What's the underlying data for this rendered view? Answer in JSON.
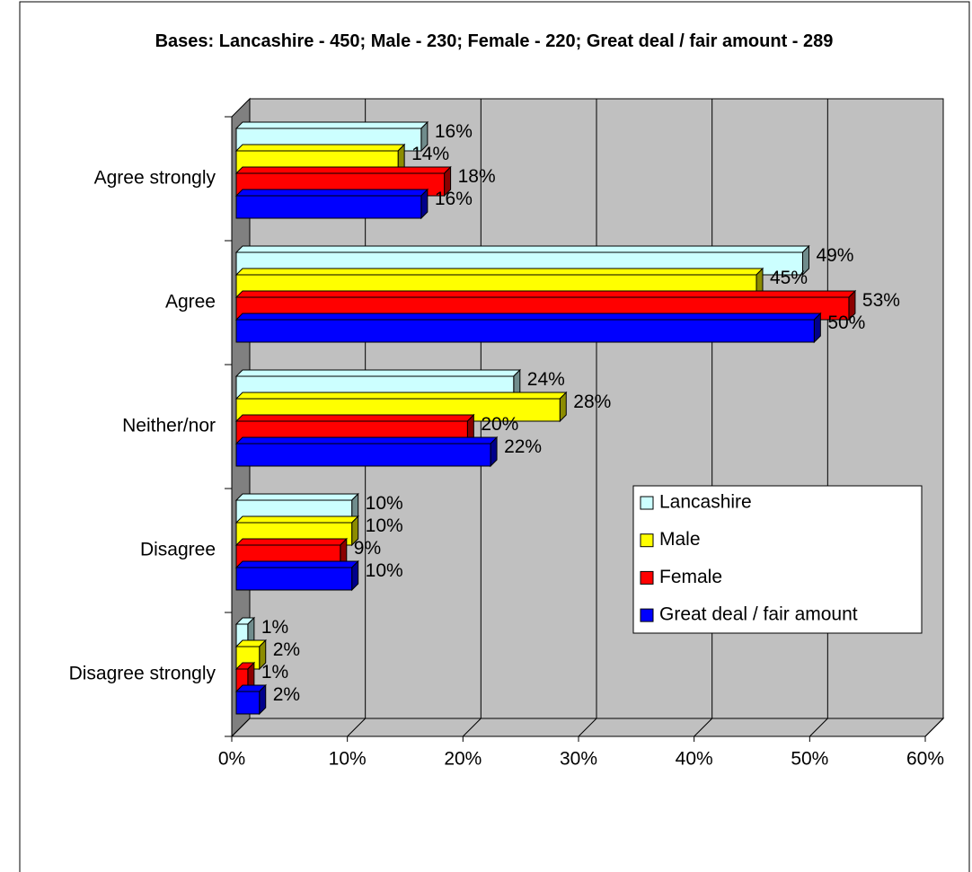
{
  "chart_data": {
    "type": "bar",
    "orientation": "horizontal",
    "title": "Bases: Lancashire - 450; Male - 230; Female - 220; Great deal / fair amount - 289",
    "categories": [
      "Agree strongly",
      "Agree",
      "Neither/nor",
      "Disagree",
      "Disagree strongly"
    ],
    "series": [
      {
        "name": "Lancashire",
        "color": "#ccffff",
        "values": [
          16,
          49,
          24,
          10,
          1
        ],
        "value_labels": [
          "16%",
          "49%",
          "24%",
          "10%",
          "1%"
        ]
      },
      {
        "name": "Male",
        "color": "#ffff00",
        "values": [
          14,
          45,
          28,
          10,
          2
        ],
        "value_labels": [
          "14%",
          "45%",
          "28%",
          "10%",
          "2%"
        ]
      },
      {
        "name": "Female",
        "color": "#ff0000",
        "values": [
          18,
          53,
          20,
          9,
          1
        ],
        "value_labels": [
          "18%",
          "53%",
          "20%",
          "9%",
          "1%"
        ]
      },
      {
        "name": "Great deal / fair amount",
        "color": "#0000ff",
        "values": [
          16,
          50,
          22,
          10,
          2
        ],
        "value_labels": [
          "16%",
          "50%",
          "22%",
          "10%",
          "2%"
        ]
      }
    ],
    "xlim": [
      0,
      60
    ],
    "xticks": [
      {
        "value": 0,
        "label": "0%"
      },
      {
        "value": 10,
        "label": "10%"
      },
      {
        "value": 20,
        "label": "20%"
      },
      {
        "value": 30,
        "label": "30%"
      },
      {
        "value": 40,
        "label": "40%"
      },
      {
        "value": 50,
        "label": "50%"
      },
      {
        "value": 60,
        "label": "60%"
      }
    ],
    "grid": true,
    "legend": "right"
  }
}
